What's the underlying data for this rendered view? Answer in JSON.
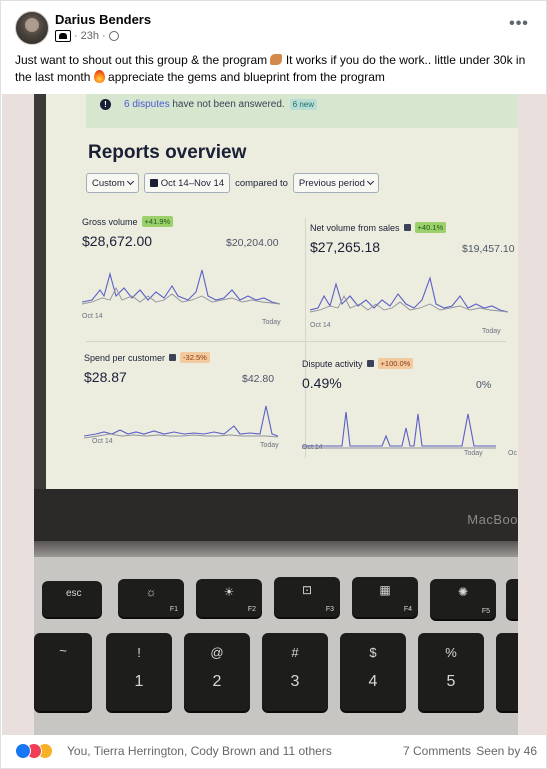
{
  "post": {
    "author": "Darius Benders",
    "time": "23h",
    "separator": "·",
    "text_part1": "Just want to shout out this group & the program ",
    "text_part2": " It works if you do the work.. little under 30k in the last month ",
    "text_part3": " appreciate the gems and blueprint from the program",
    "more_label": "•••"
  },
  "photo_screen": {
    "alert": {
      "icon": "!",
      "link": "6 disputes",
      "text": " have not been answered.",
      "badge": "6 new"
    },
    "title": "Reports overview",
    "filters": {
      "range_preset": "Custom",
      "date_range": "Oct 14–Nov 14",
      "compared_label": "compared to",
      "comparison": "Previous period"
    },
    "metrics": [
      {
        "label": "Gross volume",
        "delta": "+41.9%",
        "value": "$28,672.00",
        "previous": "$20,204.00",
        "axis_start": "Oct 14",
        "axis_end": "Today"
      },
      {
        "label": "Net volume from sales",
        "delta": "+40.1%",
        "value": "$27,265.18",
        "previous": "$19,457.10",
        "axis_start": "Oct 14",
        "axis_end": "Today"
      },
      {
        "label": "Spend per customer",
        "delta": "-32.5%",
        "value": "$28.87",
        "previous": "$42.80",
        "axis_start": "Oct 14",
        "axis_end": "Today"
      },
      {
        "label": "Dispute activity",
        "delta": "+100.0%",
        "value": "0.49%",
        "previous": "0%",
        "axis_start": "Oct 14",
        "axis_end": "Today",
        "axis_end_extra": "Oc"
      }
    ],
    "macbook_label": "MacBoo",
    "keys": {
      "esc": "esc",
      "f1": "F1",
      "f2": "F2",
      "f3": "F3",
      "f4": "F4",
      "f5": "F5",
      "brightness_down_glyph": "☼",
      "brightness_up_glyph": "☀",
      "mission_control_glyph": "⊡",
      "launchpad_glyph": "▦",
      "kbd_light_glyph": "✺",
      "tilde_top": "~",
      "one_top": "!",
      "one": "1",
      "two_top": "@",
      "two": "2",
      "three_top": "#",
      "three": "3",
      "four_top": "$",
      "four": "4",
      "five_top": "%",
      "five": "5"
    }
  },
  "footer": {
    "reactors": "You, Tierra Herrington, Cody Brown and 11 others",
    "comments": "7 Comments",
    "seen_by": "Seen by 46"
  },
  "colors": {
    "like": "#1877f2",
    "love": "#f33e58",
    "care": "#f7b125",
    "chart_line": "#5b5fc7"
  }
}
